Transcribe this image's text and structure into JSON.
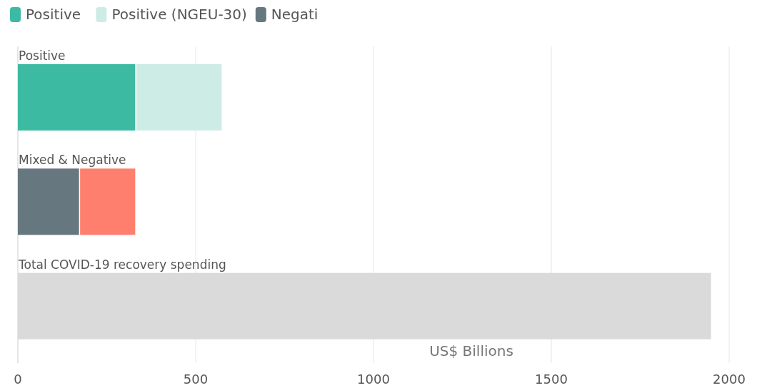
{
  "chart_data": {
    "type": "bar",
    "orientation": "horizontal",
    "stacked": true,
    "categories": [
      "Positive",
      "Mixed & Negative",
      "Total COVID-19 recovery spending"
    ],
    "series": [
      {
        "name": "Positive",
        "color": "#3dbaa2",
        "values": [
          333,
          null,
          null
        ]
      },
      {
        "name": "Positive (NGEU-30)",
        "color": "#cdece5",
        "values": [
          243,
          null,
          null
        ]
      },
      {
        "name": "Negati",
        "color": "#67777f",
        "values": [
          null,
          175,
          null
        ]
      },
      {
        "color": "#ff7f6e",
        "values": [
          null,
          158,
          null
        ]
      },
      {
        "color": "#dadada",
        "values": [
          null,
          null,
          1952
        ]
      }
    ],
    "xlabel": "US$ Billions",
    "xlim": [
      0,
      2000
    ],
    "xticks": [
      0,
      500,
      1000,
      1500,
      2000
    ],
    "grid": "x",
    "legend": "top left"
  }
}
